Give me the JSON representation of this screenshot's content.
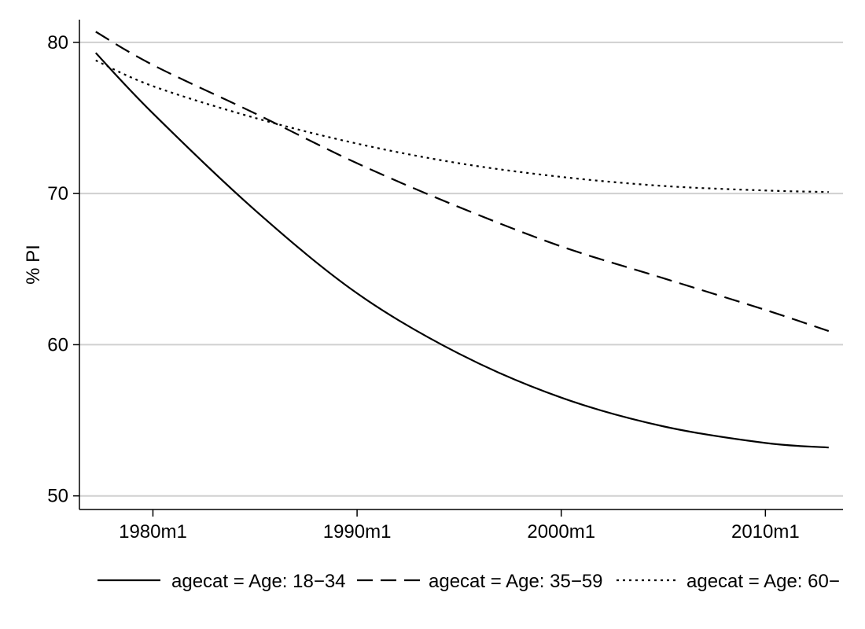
{
  "chart_data": {
    "type": "line",
    "title": "",
    "xlabel": "",
    "ylabel": "% PI",
    "x_axis": {
      "ticks": [
        1980,
        1990,
        2000,
        2010
      ],
      "tick_labels": [
        "1980m1",
        "1990m1",
        "2000m1",
        "2010m1"
      ],
      "range": [
        1976.4,
        2013.8
      ]
    },
    "y_axis": {
      "ticks": [
        50,
        60,
        70,
        80
      ],
      "tick_labels": [
        "50",
        "60",
        "70",
        "80"
      ],
      "range": [
        49.1,
        81.5
      ]
    },
    "grid": "horizontal",
    "legend_position": "bottom",
    "x": [
      1977.2,
      1980,
      1985,
      1990,
      1995,
      2000,
      2005,
      2010,
      2013.1
    ],
    "series": [
      {
        "name": "agecat = Age: 18−34",
        "line_style": "solid",
        "color": "#000000",
        "values": [
          79.3,
          75.3,
          68.9,
          63.4,
          59.4,
          56.5,
          54.6,
          53.5,
          53.2
        ]
      },
      {
        "name": "agecat = Age: 35−59",
        "line_style": "dashed",
        "color": "#000000",
        "values": [
          80.7,
          78.5,
          75.3,
          72.0,
          69.1,
          66.5,
          64.4,
          62.3,
          60.9
        ]
      },
      {
        "name": "agecat = Age: 60−",
        "line_style": "dotted",
        "color": "#000000",
        "values": [
          78.8,
          77.1,
          75.0,
          73.3,
          72.0,
          71.1,
          70.5,
          70.2,
          70.1
        ]
      }
    ]
  }
}
